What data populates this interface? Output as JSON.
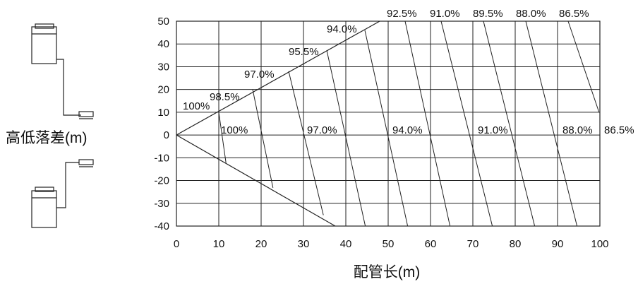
{
  "chart_data": {
    "type": "line",
    "title": "",
    "xlabel": "配管长(m)",
    "ylabel": "高低落差(m)",
    "xlim": [
      0,
      100
    ],
    "ylim": [
      -40,
      50
    ],
    "xticks": [
      0,
      10,
      20,
      30,
      40,
      50,
      60,
      70,
      80,
      90,
      100
    ],
    "yticks": [
      50,
      40,
      30,
      20,
      10,
      0,
      -10,
      -20,
      -30,
      -40
    ],
    "grid": true,
    "boundary": {
      "upper": [
        [
          0,
          0
        ],
        [
          48,
          50
        ]
      ],
      "lower": [
        [
          0,
          0
        ],
        [
          37.5,
          -40
        ]
      ]
    },
    "contours_upper": [
      {
        "label": "100%",
        "label_pos": [
          0.5,
          13
        ],
        "line": null
      },
      {
        "label": "98.5%",
        "label_pos": [
          7.8,
          16.5
        ],
        "line": [
          [
            9.4,
            9.8
          ],
          [
            18.2,
            19.0
          ]
        ]
      },
      {
        "label": "97.0%",
        "label_pos": [
          16,
          25.5
        ],
        "line": [
          [
            19.2,
            20.0
          ],
          [
            26.6,
            27.7
          ]
        ]
      },
      {
        "label": "95.5%",
        "label_pos": [
          26,
          35.5
        ],
        "line": [
          [
            28.5,
            29.7
          ],
          [
            35.3,
            36.8
          ]
        ]
      },
      {
        "label": "94.0%",
        "label_pos": [
          35.5,
          45
        ],
        "line": [
          [
            37.8,
            39.4
          ],
          [
            44.1,
            45.9
          ]
        ]
      },
      {
        "label": "92.5%",
        "label_pos": [
          50.5,
          50
        ],
        "line": [
          [
            47.8,
            49.8
          ],
          [
            54.0,
            50.0
          ]
        ]
      },
      {
        "label": "91.0%",
        "label_pos": [
          60.5,
          50
        ],
        "line": [
          [
            60.5,
            50.0
          ],
          [
            62.5,
            50.0
          ]
        ]
      },
      {
        "label": "89.5%",
        "label_pos": [
          70.5,
          50
        ],
        "line": [
          [
            70.5,
            50.0
          ],
          [
            72.5,
            50.0
          ]
        ]
      },
      {
        "label": "88.0%",
        "label_pos": [
          80.5,
          50
        ],
        "line": [
          [
            80.5,
            50.0
          ],
          [
            82.5,
            50.0
          ]
        ]
      },
      {
        "label": "86.5%",
        "label_pos": [
          90.5,
          50
        ],
        "line": [
          [
            90.5,
            50.0
          ],
          [
            92.5,
            50.0
          ]
        ]
      }
    ],
    "contours_lower": [
      {
        "label": "100%",
        "label_pos": [
          10.2,
          2.5
        ]
      },
      {
        "label": "97.0%",
        "label_pos": [
          30.5,
          2.5
        ]
      },
      {
        "label": "94.0%",
        "label_pos": [
          50.5,
          2.5
        ]
      },
      {
        "label": "91.0%",
        "label_pos": [
          70.5,
          2.5
        ]
      },
      {
        "label": "88.0%",
        "label_pos": [
          90.5,
          2.5
        ]
      },
      {
        "label": "86.5%",
        "label_pos": [
          100.8,
          2.5
        ]
      }
    ],
    "equal_capacity_lines": [
      [
        [
          10.0,
          10.0
        ],
        [
          11.7,
          -12.2
        ]
      ],
      [
        [
          18.0,
          20.0
        ],
        [
          22.8,
          -23.2
        ]
      ],
      [
        [
          26.5,
          28.0
        ],
        [
          34.7,
          -35.2
        ]
      ],
      [
        [
          35.5,
          37.2
        ],
        [
          44.6,
          -40.0
        ]
      ],
      [
        [
          44.5,
          46.0
        ],
        [
          54.6,
          -40.0
        ]
      ],
      [
        [
          54.0,
          50.0
        ],
        [
          64.6,
          -40.0
        ]
      ],
      [
        [
          62.5,
          50.0
        ],
        [
          74.6,
          -40.0
        ]
      ],
      [
        [
          72.5,
          50.0
        ],
        [
          84.6,
          -40.0
        ]
      ],
      [
        [
          82.5,
          50.0
        ],
        [
          94.6,
          -40.0
        ]
      ],
      [
        [
          92.5,
          50.0
        ],
        [
          99.8,
          10.0
        ]
      ]
    ]
  },
  "labels": {
    "upper_100": "100%",
    "upper_985": "98.5%",
    "upper_970": "97.0%",
    "upper_955": "95.5%",
    "upper_940": "94.0%",
    "top_925": "92.5%",
    "top_910": "91.0%",
    "top_895": "89.5%",
    "top_880": "88.0%",
    "top_865": "86.5%",
    "mid_100": "100%",
    "mid_970": "97.0%",
    "mid_940": "94.0%",
    "mid_910": "91.0%",
    "mid_880": "88.0%",
    "mid_865": "86.5%"
  }
}
